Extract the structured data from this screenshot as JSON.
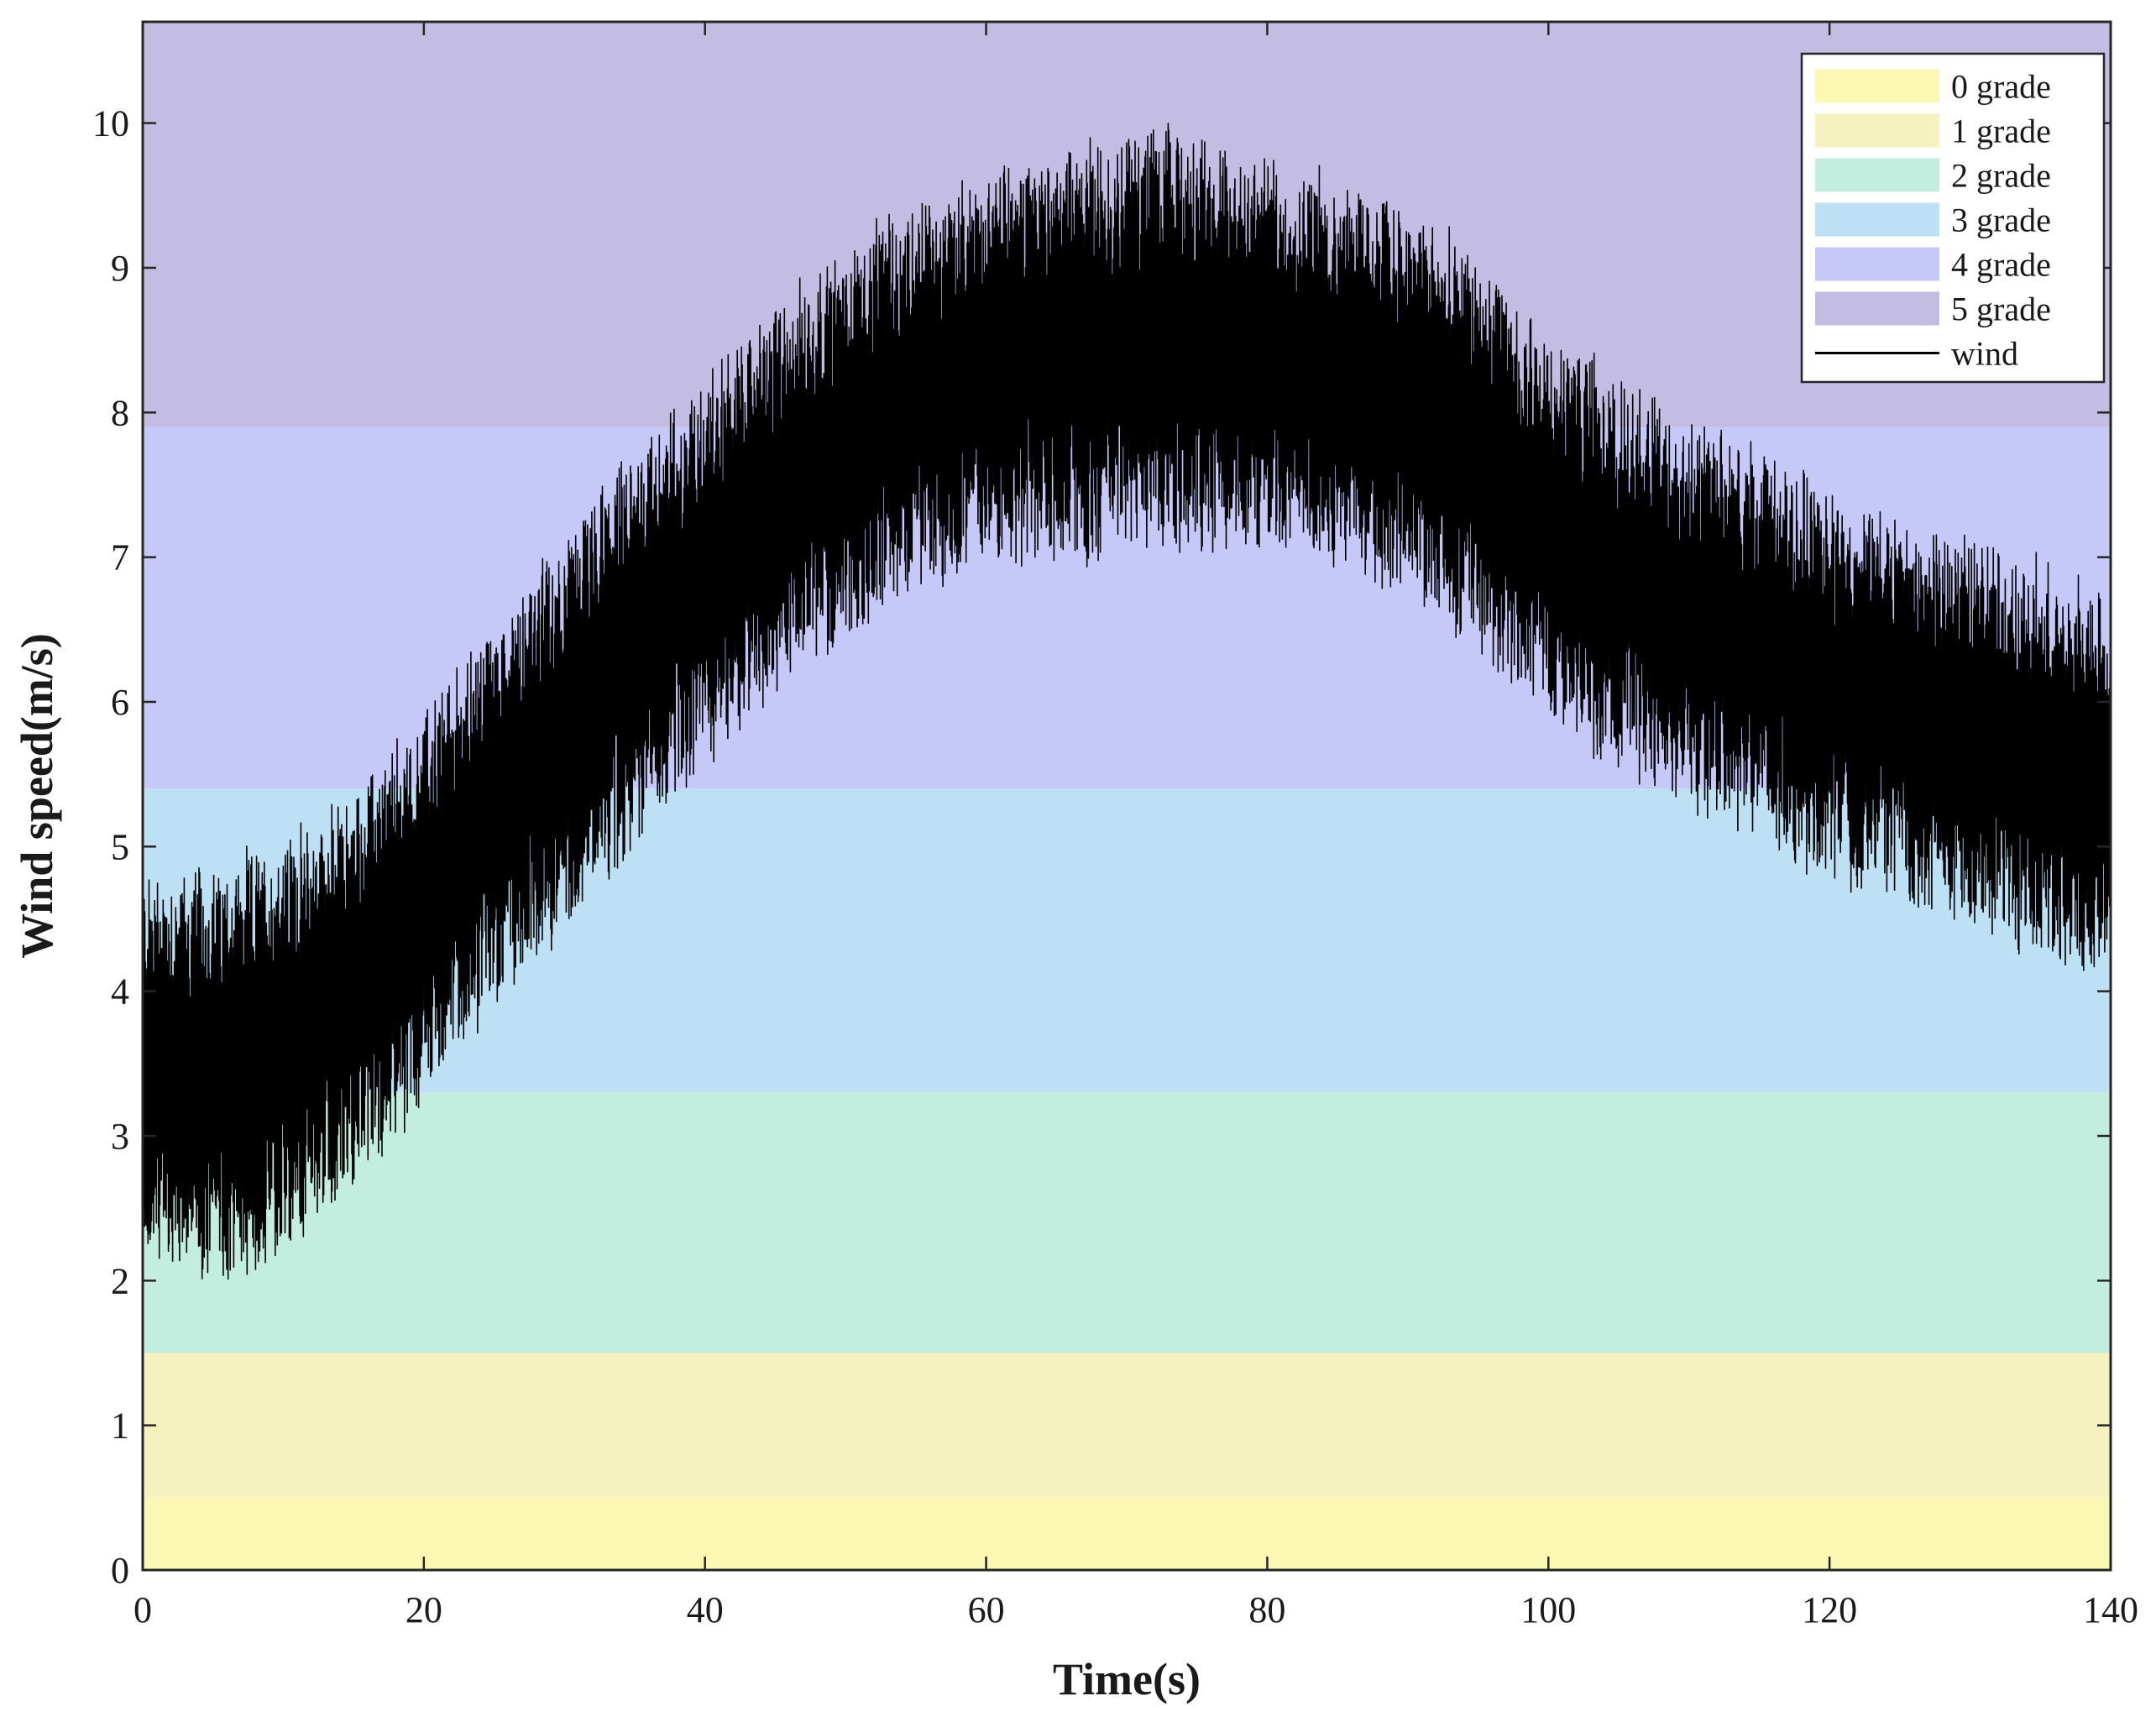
{
  "chart_data": {
    "type": "line",
    "title": "",
    "xlabel": "Time(s)",
    "ylabel": "Wind speed(m/s)",
    "xlim": [
      0,
      140
    ],
    "ylim": [
      0,
      10.7
    ],
    "xticks": [
      0,
      20,
      40,
      60,
      80,
      100,
      120,
      140
    ],
    "yticks": [
      0,
      1,
      2,
      3,
      4,
      5,
      6,
      7,
      8,
      9,
      10
    ],
    "legend_position": "top-right",
    "grid": false,
    "bands": [
      {
        "name": "0 grade",
        "y0": 0.0,
        "y1": 0.5,
        "color": "#fbf8b3"
      },
      {
        "name": "1 grade",
        "y0": 0.5,
        "y1": 1.5,
        "color": "#f6f2c0"
      },
      {
        "name": "2 grade",
        "y0": 1.5,
        "y1": 3.3,
        "color": "#c2eddf"
      },
      {
        "name": "3 grade",
        "y0": 3.3,
        "y1": 5.4,
        "color": "#bde0f5"
      },
      {
        "name": "4 grade",
        "y0": 5.4,
        "y1": 7.9,
        "color": "#c6c9f8"
      },
      {
        "name": "5 grade",
        "y0": 7.9,
        "y1": 10.7,
        "color": "#c3bde3"
      }
    ],
    "series": [
      {
        "name": "wind",
        "color": "#000000",
        "x": [
          0,
          5,
          10,
          15,
          20,
          25,
          30,
          35,
          40,
          45,
          50,
          55,
          60,
          65,
          70,
          75,
          80,
          85,
          90,
          95,
          100,
          105,
          110,
          115,
          120,
          125,
          130,
          135,
          140
        ],
        "y": [
          3.5,
          3.4,
          3.6,
          4.0,
          4.6,
          5.2,
          5.8,
          6.4,
          6.9,
          7.4,
          7.8,
          8.1,
          8.3,
          8.4,
          8.5,
          8.5,
          8.4,
          8.3,
          8.1,
          7.7,
          7.2,
          6.9,
          6.6,
          6.4,
          6.1,
          6.0,
          5.8,
          5.6,
          5.4
        ],
        "spread": [
          1.3,
          1.4,
          1.4,
          1.3,
          1.3,
          1.3,
          1.3,
          1.3,
          1.3,
          1.3,
          1.3,
          1.3,
          1.3,
          1.4,
          1.4,
          1.4,
          1.3,
          1.3,
          1.3,
          1.3,
          1.3,
          1.3,
          1.3,
          1.3,
          1.3,
          1.3,
          1.3,
          1.3,
          1.3
        ]
      }
    ]
  }
}
